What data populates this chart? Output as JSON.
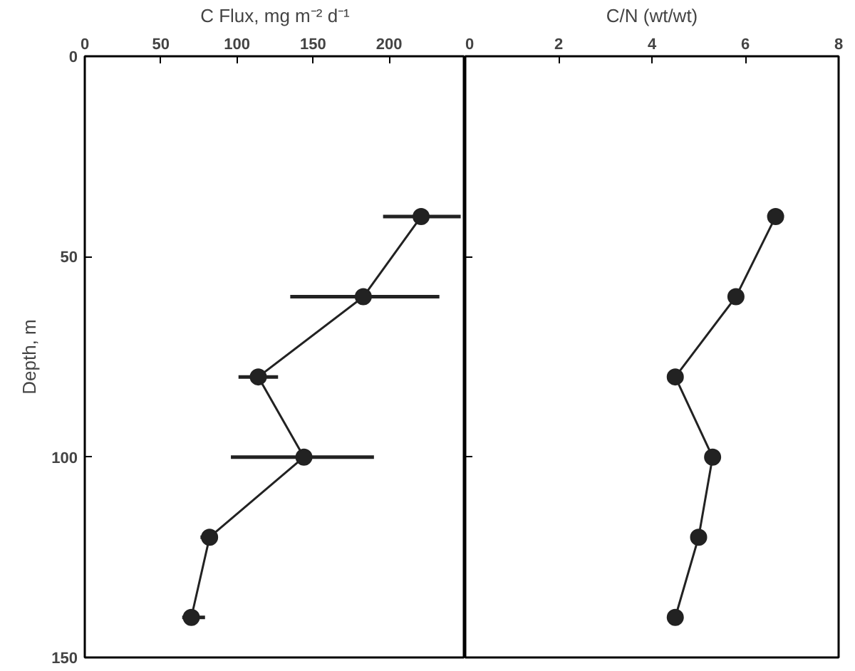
{
  "chart_data": [
    {
      "type": "line",
      "xlabel": "C Flux, mg m⁻² d⁻¹",
      "ylabel": "Depth, m",
      "marker": "circle",
      "line_style": "solid",
      "grid": false,
      "xlim": [
        0,
        250
      ],
      "xticks": [
        0,
        50,
        100,
        150,
        200,
        {
          "value": 250,
          "label": null
        }
      ],
      "ylim": [
        150,
        0
      ],
      "yticks": [
        0,
        50,
        100,
        150
      ],
      "series": [
        {
          "color": "#222222",
          "x": [
            221,
            183,
            114,
            144,
            82,
            70
          ],
          "values": [
            40,
            60,
            80,
            100,
            120,
            140
          ],
          "xerrors": [
            [
              196,
              247
            ],
            [
              135,
              233
            ],
            [
              101,
              127
            ],
            [
              96,
              190
            ],
            [
              76,
              87
            ],
            [
              64,
              79
            ]
          ]
        }
      ]
    },
    {
      "type": "line",
      "xlabel": "C/N (wt/wt)",
      "marker": "circle",
      "line_style": "solid",
      "grid": false,
      "tick_labels": "x",
      "xlim": [
        0,
        8
      ],
      "xticks": [
        0,
        2,
        4,
        6,
        8
      ],
      "ylim": [
        150,
        0
      ],
      "yticks": [
        {
          "value": 0,
          "label": null
        },
        {
          "value": 50,
          "label": null
        },
        {
          "value": 100,
          "label": null
        },
        {
          "value": 150,
          "label": null
        }
      ],
      "series": [
        {
          "color": "#222222",
          "x": [
            6.65,
            5.8,
            4.5,
            5.3,
            5.0,
            4.5
          ],
          "values": [
            40,
            60,
            80,
            100,
            120,
            140
          ]
        }
      ]
    }
  ]
}
